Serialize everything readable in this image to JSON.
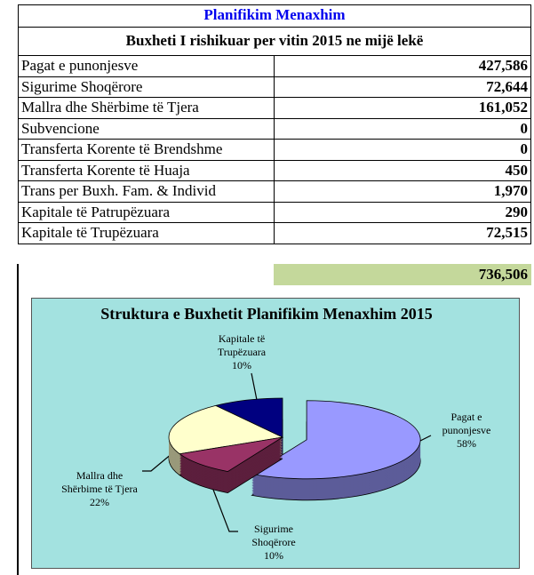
{
  "header": {
    "title": "Planifikim Menaxhim",
    "subtitle": "Buxheti I rishikuar per vitin 2015 ne mijë lekë"
  },
  "table": {
    "rows": [
      [
        "Pagat e punonjesve",
        "427,586"
      ],
      [
        "Sigurime Shoqërore",
        "72,644"
      ],
      [
        "Mallra dhe Shërbime të Tjera",
        "161,052"
      ],
      [
        "Subvencione",
        "0"
      ],
      [
        "Transferta Korente të Brendshme",
        "0"
      ],
      [
        "Transferta Korente të Huaja",
        "450"
      ],
      [
        "Trans per Buxh. Fam. & Individ",
        "1,970"
      ],
      [
        "Kapitale të Patrupëzuara",
        "290"
      ],
      [
        "Kapitale të Trupëzuara",
        "72,515"
      ]
    ],
    "total": "736,506"
  },
  "chart_data": {
    "type": "pie",
    "title": "Struktura e Buxhetit Planifikim Menaxhim 2015",
    "categories": [
      "Pagat e punonjesve",
      "Sigurime Shoqërore",
      "Mallra dhe Shërbime të Tjera",
      "Kapitale të Trupëzuara"
    ],
    "values": [
      58,
      10,
      22,
      10
    ],
    "value_labels": [
      "58%",
      "10%",
      "22%",
      "10%"
    ],
    "colors": [
      "#9999ff",
      "#993366",
      "#ffffcc",
      "#000080"
    ]
  }
}
